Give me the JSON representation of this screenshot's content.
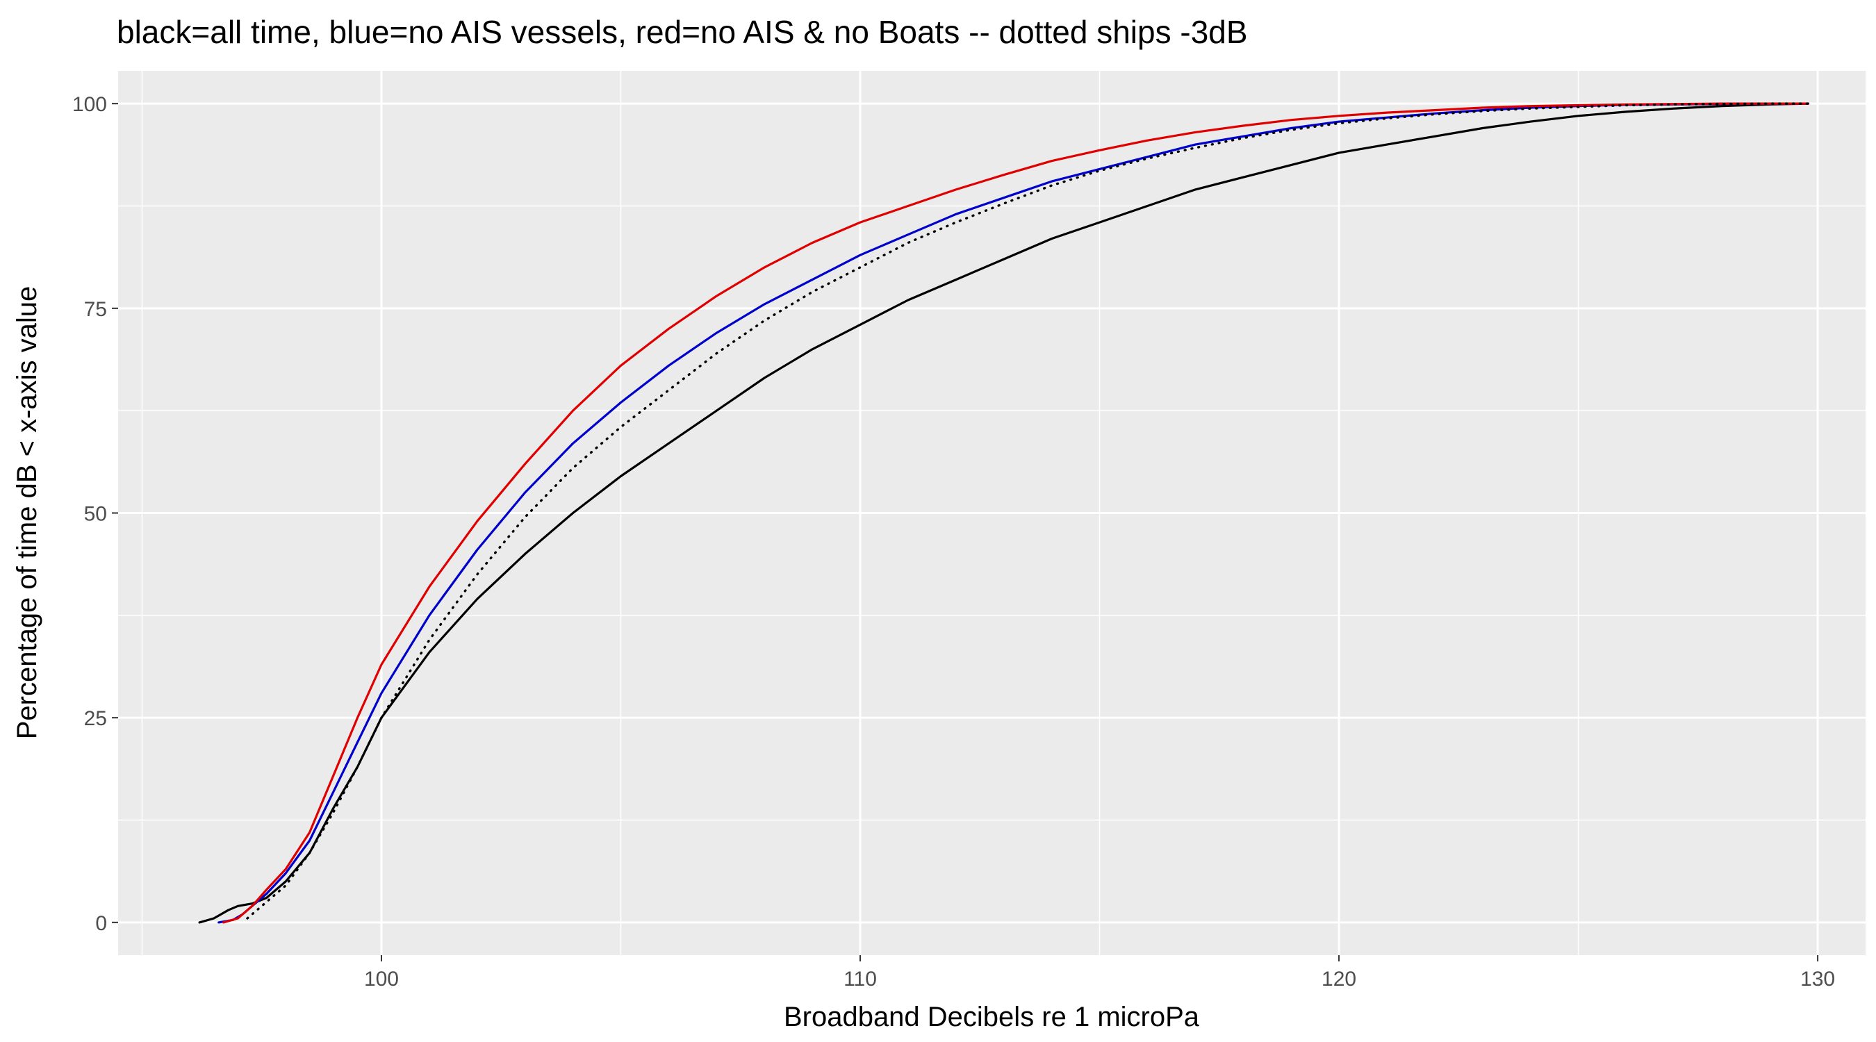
{
  "chart_data": {
    "type": "line",
    "title": "black=all time, blue=no AIS vessels, red=no AIS & no Boats -- dotted ships -3dB",
    "xlabel": "Broadband Decibels re 1 microPa",
    "ylabel": "Percentage of time dB < x-axis value",
    "xlim": [
      94.5,
      131
    ],
    "ylim": [
      -4,
      104
    ],
    "x_ticks": [
      100,
      110,
      120,
      130
    ],
    "x_tick_labels": [
      "100",
      "110",
      "120",
      "130"
    ],
    "y_ticks": [
      0,
      25,
      50,
      75,
      100
    ],
    "y_tick_labels": [
      "0",
      "25",
      "50",
      "75",
      "100"
    ],
    "grid": true,
    "legend": "none",
    "colors": {
      "panel": "#ebebeb",
      "grid": "#ffffff",
      "tick_text": "#4d4d4d"
    },
    "series": [
      {
        "color": "#000000",
        "style": "solid",
        "x": [
          96.2,
          96.5,
          96.8,
          97.0,
          97.3,
          97.6,
          98.0,
          98.5,
          99.0,
          99.5,
          100.0,
          101.0,
          102.0,
          103.0,
          104.0,
          105.0,
          106.0,
          107.0,
          108.0,
          109.0,
          110.0,
          111.0,
          112.0,
          113.0,
          114.0,
          115.0,
          116.0,
          117.0,
          118.0,
          119.0,
          120.0,
          121.0,
          122.0,
          123.0,
          124.0,
          125.0,
          126.0,
          127.0,
          128.0,
          129.0,
          129.8
        ],
        "y": [
          0,
          0.5,
          1.5,
          2,
          2.3,
          3,
          5,
          8.5,
          14,
          19,
          25,
          33,
          39.5,
          45,
          50,
          54.5,
          58.5,
          62.5,
          66.5,
          70,
          73,
          76,
          78.5,
          81,
          83.5,
          85.5,
          87.5,
          89.5,
          91,
          92.5,
          94,
          95,
          96,
          97,
          97.8,
          98.5,
          99,
          99.4,
          99.7,
          99.9,
          100
        ]
      },
      {
        "color": "#0000cc",
        "style": "solid",
        "x": [
          96.6,
          96.9,
          97.1,
          97.3,
          97.6,
          98.0,
          98.5,
          99.0,
          99.5,
          100.0,
          101.0,
          102.0,
          103.0,
          104.0,
          105.0,
          106.0,
          107.0,
          108.0,
          109.0,
          110.0,
          111.0,
          112.0,
          113.0,
          114.0,
          115.0,
          116.0,
          117.0,
          118.0,
          119.0,
          120.0,
          121.0,
          122.0,
          123.0,
          124.0,
          125.0,
          126.0,
          127.0,
          128.0,
          129.0,
          129.8
        ],
        "y": [
          0,
          0.3,
          1,
          2,
          3.5,
          6,
          10,
          16,
          22,
          28,
          37.5,
          45.5,
          52.5,
          58.5,
          63.5,
          68,
          72,
          75.5,
          78.5,
          81.5,
          84,
          86.5,
          88.5,
          90.5,
          92,
          93.5,
          95,
          96,
          97,
          97.8,
          98.3,
          98.8,
          99.2,
          99.5,
          99.7,
          99.85,
          99.9,
          99.95,
          100,
          100
        ]
      },
      {
        "color": "#e00000",
        "style": "solid",
        "x": [
          96.7,
          97.0,
          97.3,
          97.6,
          98.0,
          98.5,
          99.0,
          99.5,
          100.0,
          101.0,
          102.0,
          103.0,
          104.0,
          105.0,
          106.0,
          107.0,
          108.0,
          109.0,
          110.0,
          111.0,
          112.0,
          113.0,
          114.0,
          115.0,
          116.0,
          117.0,
          118.0,
          119.0,
          120.0,
          121.0,
          122.0,
          123.0,
          124.0,
          125.0,
          126.0,
          127.0,
          128.0,
          129.0,
          129.8
        ],
        "y": [
          0,
          0.5,
          2,
          4,
          6.5,
          11,
          18,
          25,
          31.5,
          41,
          49,
          56,
          62.5,
          68,
          72.5,
          76.5,
          80,
          83,
          85.5,
          87.5,
          89.5,
          91.3,
          93,
          94.3,
          95.5,
          96.5,
          97.3,
          98,
          98.5,
          98.9,
          99.2,
          99.5,
          99.7,
          99.8,
          99.9,
          99.95,
          100,
          100,
          100
        ]
      },
      {
        "color": "#000000",
        "style": "dotted",
        "x": [
          97.2,
          97.5,
          98.0,
          98.5,
          99.0,
          99.5,
          100.0,
          101.0,
          102.0,
          103.0,
          104.0,
          105.0,
          106.0,
          107.0,
          108.0,
          109.0,
          110.0,
          111.0,
          112.0,
          113.0,
          114.0,
          115.0,
          116.0,
          117.0,
          118.0,
          119.0,
          120.0,
          121.0,
          122.0,
          123.0,
          124.0,
          125.0,
          126.0,
          127.0,
          128.0,
          129.0,
          129.8
        ],
        "y": [
          0.5,
          2,
          4.5,
          8.5,
          13.5,
          19,
          25,
          34.5,
          42.5,
          49.5,
          55.5,
          60.5,
          65,
          69.5,
          73.5,
          77,
          80,
          83,
          85.5,
          87.8,
          90,
          91.8,
          93.3,
          94.6,
          95.8,
          96.8,
          97.6,
          98.2,
          98.7,
          99.1,
          99.4,
          99.6,
          99.8,
          99.9,
          99.95,
          100,
          100
        ]
      }
    ]
  }
}
